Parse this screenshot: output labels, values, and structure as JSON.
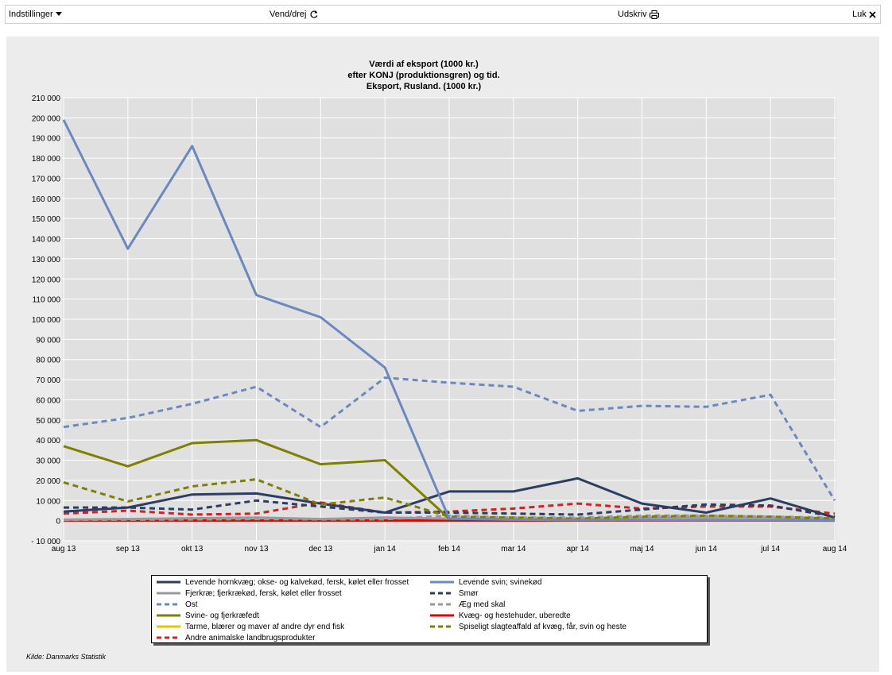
{
  "toolbar": {
    "settings_label": "Indstillinger",
    "rotate_label": "Vend/drej",
    "print_label": "Udskriv",
    "close_label": "Luk"
  },
  "source": "Kilde: Danmarks Statistik",
  "chart_data": {
    "type": "line",
    "title": "Værdi af eksport (1000 kr.)",
    "subtitle": "efter KONJ (produktionsgren) og tid.",
    "subtitle2": "Eksport, Rusland. (1000 kr.)",
    "xlabel": "",
    "ylabel": "",
    "ylim": [
      -10000,
      210000
    ],
    "yticks": [
      -10000,
      0,
      10000,
      20000,
      30000,
      40000,
      50000,
      60000,
      70000,
      80000,
      90000,
      100000,
      110000,
      120000,
      130000,
      140000,
      150000,
      160000,
      170000,
      180000,
      190000,
      200000,
      210000
    ],
    "ytick_labels": [
      "- 10 000",
      "0",
      "10 000",
      "20 000",
      "30 000",
      "40 000",
      "50 000",
      "60 000",
      "70 000",
      "80 000",
      "90 000",
      "100 000",
      "110 000",
      "120 000",
      "130 000",
      "140 000",
      "150 000",
      "160 000",
      "170 000",
      "180 000",
      "190 000",
      "200 000",
      "210 000"
    ],
    "categories": [
      "aug 13",
      "sep 13",
      "okt 13",
      "nov 13",
      "dec 13",
      "jan 14",
      "feb 14",
      "mar 14",
      "apr 14",
      "maj 14",
      "jun 14",
      "jul 14",
      "aug 14"
    ],
    "grid": true,
    "legend_position": "bottom",
    "series": [
      {
        "name": "Levende svin; svinekød",
        "color": "#6c88c0",
        "dash": false,
        "values": [
          199000,
          135000,
          186000,
          112000,
          101000,
          76000,
          1000,
          500,
          300,
          300,
          200,
          200,
          100
        ]
      },
      {
        "name": "Ost",
        "color": "#6c88c0",
        "dash": true,
        "values": [
          46500,
          51000,
          58000,
          66500,
          46500,
          71000,
          68500,
          66500,
          54500,
          57000,
          56500,
          62500,
          10000
        ]
      },
      {
        "name": "Svine- og fjerkræfedt",
        "color": "#7f7f00",
        "dash": false,
        "values": [
          37000,
          27000,
          38500,
          40000,
          28000,
          30000,
          1000,
          500,
          300,
          300,
          300,
          200,
          100
        ]
      },
      {
        "name": "Spiseligt slagteaffald af kvæg, får, svin og heste",
        "color": "#7f7f00",
        "dash": true,
        "values": [
          19000,
          9500,
          17000,
          20500,
          8000,
          11500,
          2000,
          1500,
          1000,
          2000,
          2500,
          2000,
          1000
        ]
      },
      {
        "name": "Levende hornkvæg; okse- og kalvekød, fersk, kølet eller frosset",
        "color": "#2b3d63",
        "dash": false,
        "values": [
          4500,
          6500,
          13000,
          13500,
          8500,
          4000,
          14500,
          14500,
          21000,
          8500,
          4000,
          11000,
          1500
        ]
      },
      {
        "name": "Smør",
        "color": "#2b3d63",
        "dash": true,
        "values": [
          6500,
          6500,
          5500,
          10000,
          7000,
          4000,
          4000,
          3500,
          3000,
          5500,
          8000,
          7500,
          2000
        ]
      },
      {
        "name": "Andre animalske landbrugsprodukter",
        "color": "#d42020",
        "dash": true,
        "values": [
          3500,
          5000,
          3000,
          3500,
          9000,
          4000,
          4500,
          6000,
          8500,
          6000,
          7000,
          7000,
          3500
        ]
      },
      {
        "name": "Fjerkræ; fjerkrækød, fersk, kølet eller frosset",
        "color": "#9a9a9a",
        "dash": false,
        "values": [
          500,
          800,
          1200,
          1500,
          800,
          1500,
          1000,
          1000,
          1000,
          1500,
          1500,
          1500,
          1000
        ]
      },
      {
        "name": "Æg med skal",
        "color": "#9a9a9a",
        "dash": true,
        "values": [
          400,
          500,
          600,
          800,
          600,
          700,
          2500,
          1500,
          1500,
          2500,
          2500,
          2000,
          1500
        ]
      },
      {
        "name": "Kvæg- og hestehuder, uberedte",
        "color": "#e00000",
        "dash": false,
        "values": [
          100,
          100,
          100,
          100,
          100,
          100,
          100,
          100,
          100,
          100,
          100,
          100,
          0
        ]
      },
      {
        "name": "Tarme, blærer og maver af andre dyr end fisk",
        "color": "#f0c000",
        "dash": false,
        "values": [
          0,
          0,
          0,
          0,
          0,
          0,
          0,
          0,
          0,
          0,
          0,
          0,
          0
        ]
      }
    ],
    "legend_order": [
      "Levende hornkvæg; okse- og kalvekød, fersk, kølet eller frosset",
      "Levende svin; svinekød",
      "Fjerkræ; fjerkrækød, fersk, kølet eller frosset",
      "Smør",
      "Ost",
      "Æg med skal",
      "Svine- og fjerkræfedt",
      "Kvæg- og hestehuder, uberedte",
      "Tarme, blærer og maver af andre dyr end fisk",
      "Spiseligt slagteaffald af kvæg, får, svin og heste",
      "Andre animalske landbrugsprodukter"
    ]
  }
}
